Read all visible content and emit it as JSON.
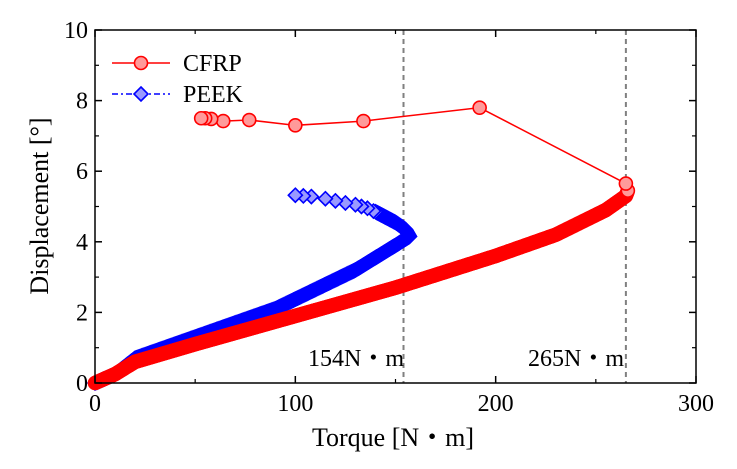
{
  "chart_data": {
    "type": "line",
    "xlabel": "Torque [N・m]",
    "ylabel": "Displacement [°]",
    "xlim": [
      0,
      300
    ],
    "ylim": [
      0,
      10
    ],
    "xticks": [
      0,
      100,
      200,
      300
    ],
    "yticks": [
      0,
      2,
      4,
      6,
      8,
      10
    ],
    "grid": false,
    "legend_position": "top-left",
    "series": [
      {
        "name": "CFRP",
        "color": "#ff0000",
        "marker": "circle",
        "line": "solid",
        "loading_path": [
          [
            0,
            0
          ],
          [
            10,
            0.25
          ],
          [
            20,
            0.6
          ],
          [
            50,
            1.1
          ],
          [
            100,
            1.9
          ],
          [
            150,
            2.7
          ],
          [
            200,
            3.6
          ],
          [
            230,
            4.2
          ],
          [
            255,
            4.9
          ],
          [
            265,
            5.3
          ],
          [
            266,
            5.45
          ]
        ],
        "points": [
          [
            265,
            5.65
          ],
          [
            192,
            7.8
          ],
          [
            134,
            7.42
          ],
          [
            100,
            7.3
          ],
          [
            77,
            7.45
          ],
          [
            64,
            7.42
          ],
          [
            58,
            7.48
          ],
          [
            55,
            7.5
          ],
          [
            53,
            7.5
          ]
        ]
      },
      {
        "name": "PEEK",
        "color": "#0000ff",
        "marker": "diamond",
        "line": "dash-dot",
        "loading_path": [
          [
            0,
            0
          ],
          [
            10,
            0.25
          ],
          [
            20,
            0.7
          ],
          [
            50,
            1.3
          ],
          [
            90,
            2.1
          ],
          [
            130,
            3.2
          ],
          [
            150,
            3.9
          ],
          [
            157,
            4.15
          ],
          [
            155,
            4.35
          ],
          [
            150,
            4.55
          ],
          [
            145,
            4.7
          ],
          [
            140,
            4.85
          ]
        ],
        "points": [
          [
            139,
            4.87
          ],
          [
            136,
            4.95
          ],
          [
            133,
            5.0
          ],
          [
            130,
            5.05
          ],
          [
            125,
            5.1
          ],
          [
            120,
            5.16
          ],
          [
            115,
            5.22
          ],
          [
            108,
            5.28
          ],
          [
            104,
            5.3
          ],
          [
            100,
            5.32
          ]
        ]
      }
    ],
    "vlines": [
      {
        "x": 154,
        "color": "#808080",
        "style": "dashed",
        "label": "154N・m"
      },
      {
        "x": 265,
        "color": "#808080",
        "style": "dashed",
        "label": "265N・m"
      }
    ]
  }
}
